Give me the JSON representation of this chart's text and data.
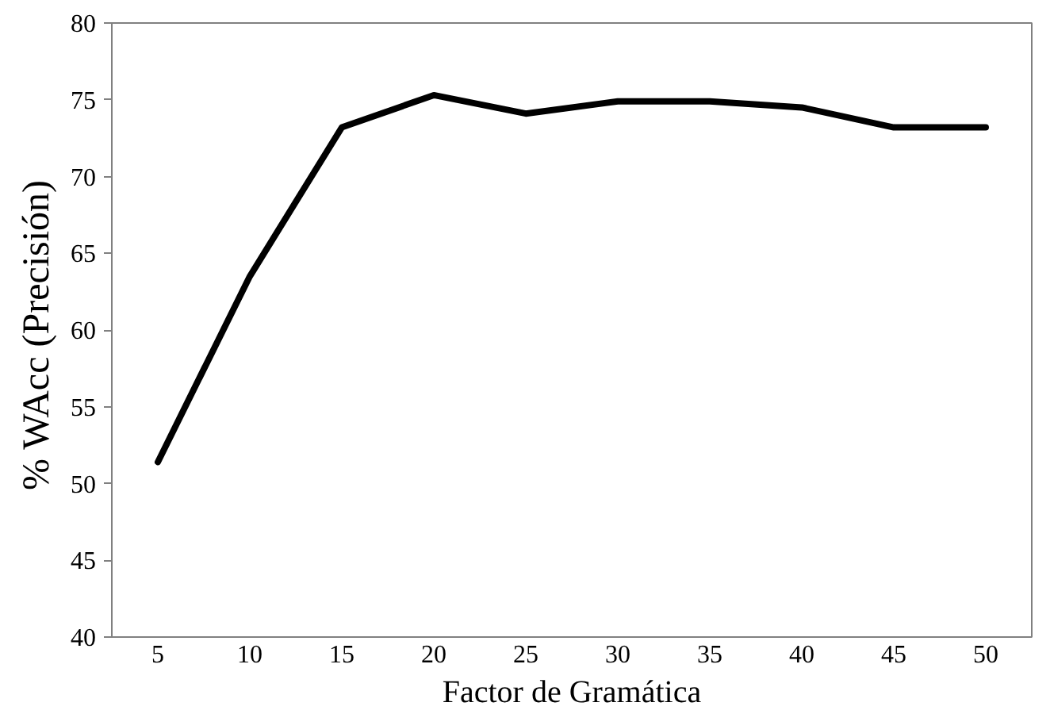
{
  "chart_data": {
    "type": "line",
    "xlabel": "Factor de Gramática",
    "ylabel": "% WAcc  (Precisión)",
    "categories": [
      "5",
      "10",
      "15",
      "20",
      "25",
      "30",
      "35",
      "40",
      "45",
      "50"
    ],
    "series": [
      {
        "color": "#000000",
        "values": [
          51.4,
          63.5,
          73.2,
          75.3,
          74.1,
          74.9,
          74.9,
          74.5,
          73.2,
          73.2
        ]
      }
    ],
    "ylim": [
      40,
      80
    ],
    "yticks": [
      40,
      45,
      50,
      55,
      60,
      65,
      70,
      75,
      80
    ],
    "grid": false,
    "marker": "none",
    "line_style": "solid"
  }
}
